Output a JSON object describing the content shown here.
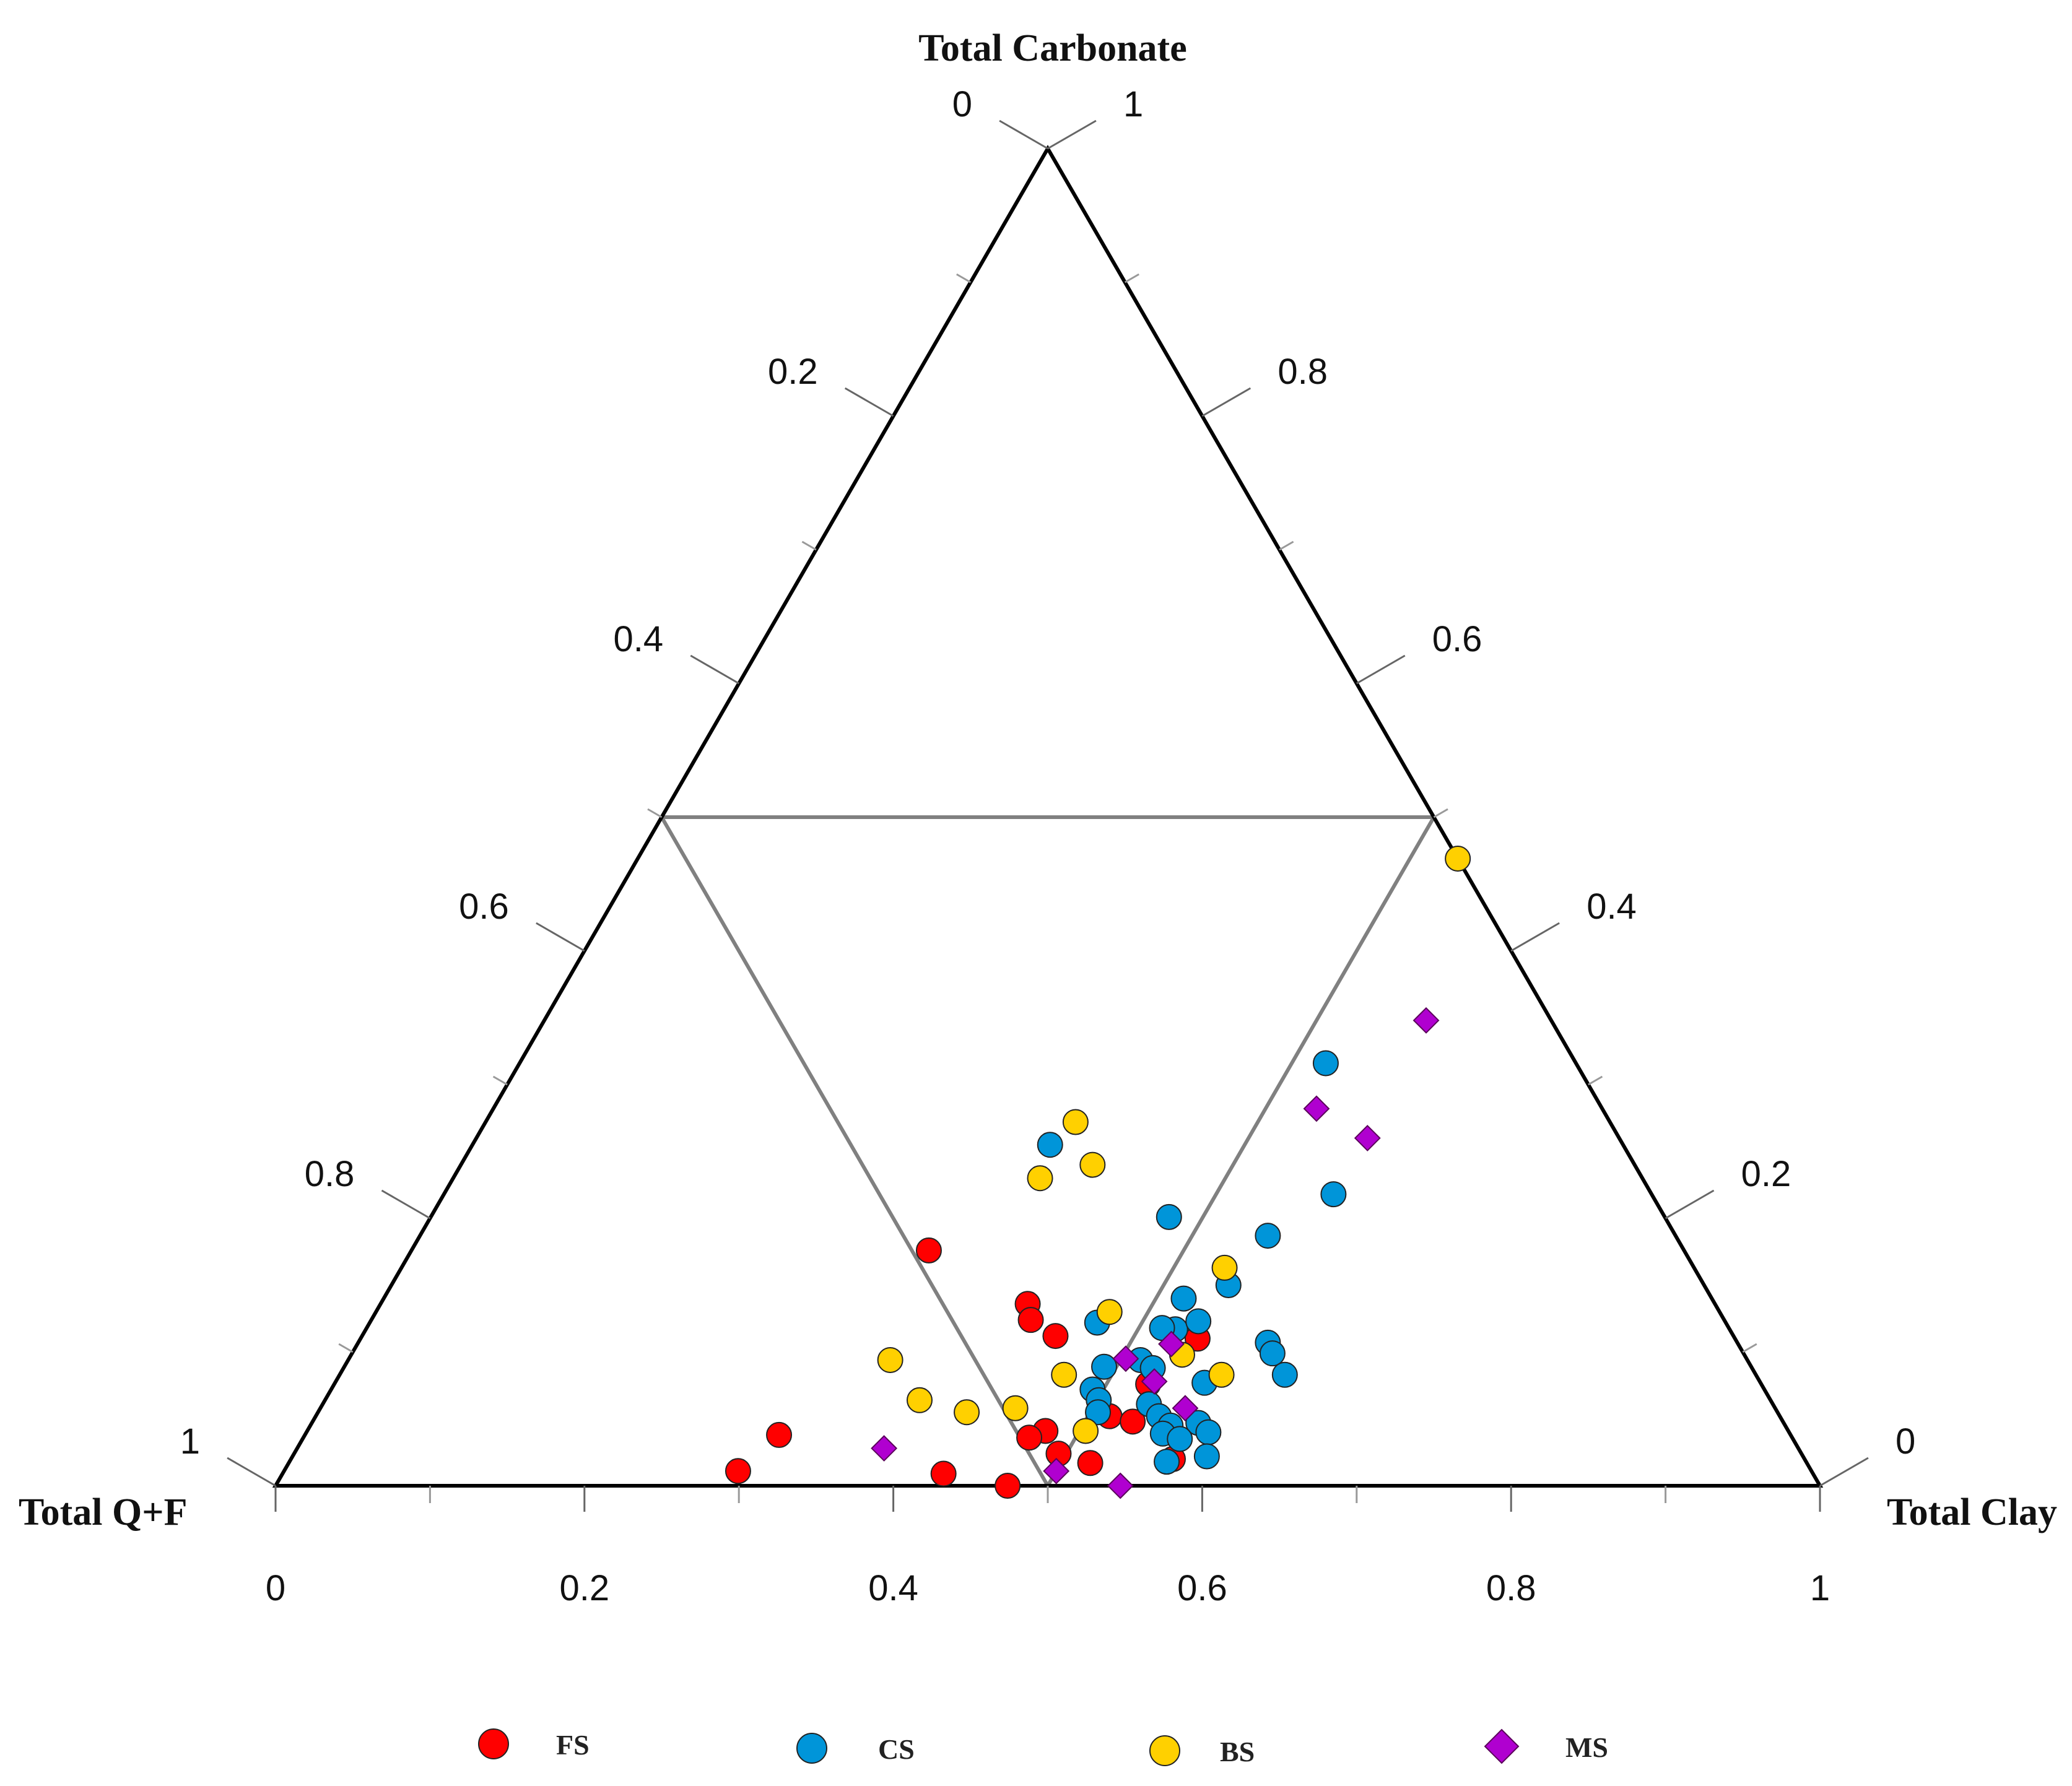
{
  "chart_data": {
    "type": "scatter",
    "subtype": "ternary",
    "title": "",
    "axes": {
      "top": "Total Carbonate",
      "left": "Total Q+F",
      "right": "Total Clay"
    },
    "tick_labels": [
      "0",
      "0.2",
      "0.4",
      "0.6",
      "0.8",
      "1"
    ],
    "left_edge_labels": [
      "0",
      "0.2",
      "0.4",
      "0.6",
      "0.8",
      "1"
    ],
    "right_edge_labels": [
      "1",
      "0.8",
      "0.6",
      "0.4",
      "0.2",
      "0"
    ],
    "grid": false,
    "legend_position": "bottom",
    "region_lines": "inner triangle joining edge midpoints",
    "colors": {
      "FS": "#ff0000",
      "CS": "#0095d9",
      "BS": "#ffd000",
      "MS": "#b000d0"
    },
    "series": [
      {
        "name": "FS",
        "marker": "circle",
        "points": [
          {
            "x": 0.335,
            "y": 0.176
          },
          {
            "x": 0.419,
            "y": 0.136
          },
          {
            "x": 0.427,
            "y": 0.124
          },
          {
            "x": 0.449,
            "y": 0.112
          },
          {
            "x": 0.542,
            "y": 0.11
          },
          {
            "x": 0.527,
            "y": 0.076
          },
          {
            "x": 0.514,
            "y": 0.052
          },
          {
            "x": 0.531,
            "y": 0.048
          },
          {
            "x": 0.478,
            "y": 0.041
          },
          {
            "x": 0.47,
            "y": 0.036
          },
          {
            "x": 0.495,
            "y": 0.024
          },
          {
            "x": 0.519,
            "y": 0.017
          },
          {
            "x": 0.571,
            "y": 0.02
          },
          {
            "x": 0.307,
            "y": 0.038
          },
          {
            "x": 0.294,
            "y": 0.011
          },
          {
            "x": 0.428,
            "y": 0.009
          },
          {
            "x": 0.474,
            "y": 0.0
          }
        ]
      },
      {
        "name": "CS",
        "marker": "circle",
        "points": [
          {
            "x": 0.522,
            "y": 0.316
          },
          {
            "x": 0.374,
            "y": 0.255
          },
          {
            "x": 0.576,
            "y": 0.218
          },
          {
            "x": 0.478,
            "y": 0.201
          },
          {
            "x": 0.549,
            "y": 0.187
          },
          {
            "x": 0.542,
            "y": 0.15
          },
          {
            "x": 0.518,
            "y": 0.14
          },
          {
            "x": 0.471,
            "y": 0.122
          },
          {
            "x": 0.524,
            "y": 0.117
          },
          {
            "x": 0.536,
            "y": 0.123
          },
          {
            "x": 0.515,
            "y": 0.118
          },
          {
            "x": 0.589,
            "y": 0.107
          },
          {
            "x": 0.596,
            "y": 0.099
          },
          {
            "x": 0.612,
            "y": 0.083
          },
          {
            "x": 0.513,
            "y": 0.094
          },
          {
            "x": 0.492,
            "y": 0.089
          },
          {
            "x": 0.524,
            "y": 0.088
          },
          {
            "x": 0.493,
            "y": 0.072
          },
          {
            "x": 0.501,
            "y": 0.064
          },
          {
            "x": 0.535,
            "y": 0.061
          },
          {
            "x": 0.546,
            "y": 0.052
          },
          {
            "x": 0.557,
            "y": 0.045
          },
          {
            "x": 0.574,
            "y": 0.047
          },
          {
            "x": 0.555,
            "y": 0.039
          },
          {
            "x": 0.568,
            "y": 0.035
          },
          {
            "x": 0.584,
            "y": 0.04
          },
          {
            "x": 0.592,
            "y": 0.022
          },
          {
            "x": 0.568,
            "y": 0.018
          },
          {
            "x": 0.505,
            "y": 0.055
          },
          {
            "x": 0.563,
            "y": 0.077
          }
        ]
      },
      {
        "name": "BS",
        "marker": "circle",
        "points": [
          {
            "x": 0.531,
            "y": 0.469
          },
          {
            "x": 0.382,
            "y": 0.272
          },
          {
            "x": 0.409,
            "y": 0.24
          },
          {
            "x": 0.38,
            "y": 0.23
          },
          {
            "x": 0.533,
            "y": 0.163
          },
          {
            "x": 0.475,
            "y": 0.13
          },
          {
            "x": 0.538,
            "y": 0.098
          },
          {
            "x": 0.571,
            "y": 0.083
          },
          {
            "x": 0.351,
            "y": 0.094
          },
          {
            "x": 0.385,
            "y": 0.064
          },
          {
            "x": 0.469,
            "y": 0.083
          },
          {
            "x": 0.42,
            "y": 0.055
          },
          {
            "x": 0.45,
            "y": 0.058
          },
          {
            "x": 0.504,
            "y": 0.041
          }
        ]
      },
      {
        "name": "MS",
        "marker": "diamond",
        "points": [
          {
            "x": 0.571,
            "y": 0.348
          },
          {
            "x": 0.533,
            "y": 0.282
          },
          {
            "x": 0.577,
            "y": 0.26
          },
          {
            "x": 0.503,
            "y": 0.095
          },
          {
            "x": 0.527,
            "y": 0.106
          },
          {
            "x": 0.53,
            "y": 0.078
          },
          {
            "x": 0.56,
            "y": 0.058
          },
          {
            "x": 0.38,
            "y": 0.028
          },
          {
            "x": 0.5,
            "y": 0.011
          },
          {
            "x": 0.547,
            "y": 0.0
          }
        ]
      }
    ]
  }
}
